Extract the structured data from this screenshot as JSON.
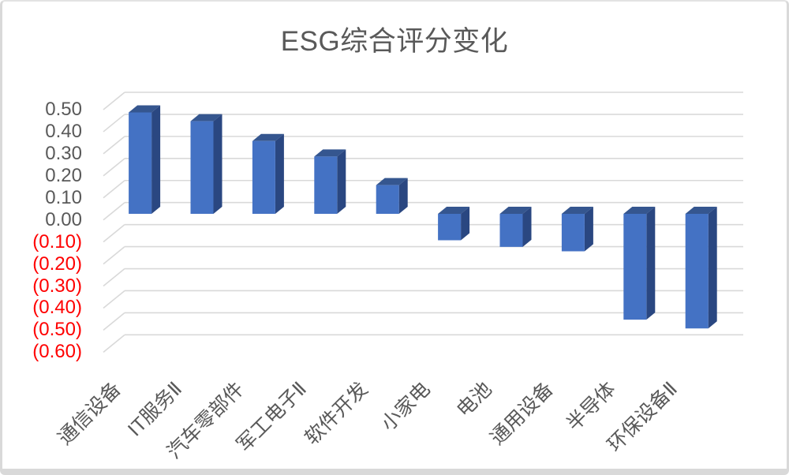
{
  "window": {
    "background": "#FFFFFF",
    "frame_border_color": "#D9D9D9"
  },
  "chart_data": {
    "type": "bar",
    "style": "3d-column",
    "title": "ESG综合评分变化",
    "categories": [
      "通信设备",
      "IT服务Ⅱ",
      "汽车零部件",
      "军工电子Ⅱ",
      "软件开发",
      "小家电",
      "电池",
      "通用设备",
      "半导体",
      "环保设备Ⅱ"
    ],
    "values": [
      0.46,
      0.42,
      0.33,
      0.26,
      0.13,
      -0.12,
      -0.15,
      -0.17,
      -0.48,
      -0.52
    ],
    "xlabel": "",
    "ylabel": "",
    "ylim": [
      -0.6,
      0.5
    ],
    "ytick_step": 0.1,
    "ytick_labels": [
      "0.50",
      "0.40",
      "0.30",
      "0.20",
      "0.10",
      "0.00",
      "(0.10)",
      "(0.20)",
      "(0.30)",
      "(0.40)",
      "(0.50)",
      "(0.60)"
    ],
    "grid": true,
    "legend_position": "none",
    "colors": {
      "bar_front": "#4472C4",
      "bar_side": "#2A4781",
      "bar_top": "#35568F",
      "gridline": "#D9D9D9",
      "axis_text": "#595959",
      "negative_tick_text": "#FF0000",
      "title_text": "#595959"
    }
  }
}
